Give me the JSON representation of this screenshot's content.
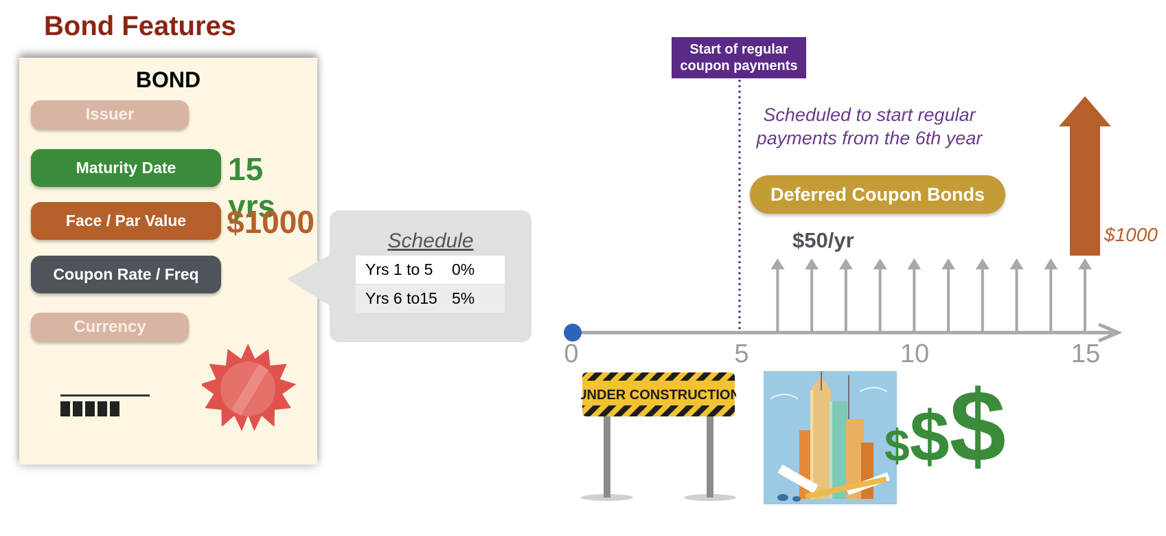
{
  "page_title": "Bond Features",
  "bond": {
    "title": "BOND",
    "fields": {
      "issuer": "Issuer",
      "maturity": "Maturity Date",
      "face": "Face / Par Value",
      "coupon": "Coupon Rate / Freq",
      "currency": "Currency"
    },
    "maturity_value": "15 yrs",
    "face_value": "$1000"
  },
  "schedule": {
    "title": "Schedule",
    "rows": [
      {
        "years": "Yrs 1 to 5",
        "rate": "0%"
      },
      {
        "years": "Yrs 6 to15",
        "rate": "5%"
      }
    ]
  },
  "timeline": {
    "marker_label": "Start of regular coupon payments",
    "note": "Scheduled to start regular payments from the 6th year",
    "badge": "Deferred Coupon Bonds",
    "coupon_label": "$50/yr",
    "face_label": "$1000",
    "ticks": [
      "0",
      "5",
      "10",
      "15"
    ],
    "coupon_years": [
      6,
      7,
      8,
      9,
      10,
      11,
      12,
      13,
      14,
      15
    ],
    "sign_text": "UNDER CONSTRUCTION"
  },
  "money": {
    "small": "$",
    "medium": "$",
    "large": "$"
  },
  "colors": {
    "title": "#8a2512",
    "green": "#3a8c3b",
    "orange": "#b5602a",
    "slate": "#4f545b",
    "purple": "#5b2a86",
    "gold": "#c49c35",
    "axis": "#a8a8a8",
    "origin": "#2f63b8"
  }
}
